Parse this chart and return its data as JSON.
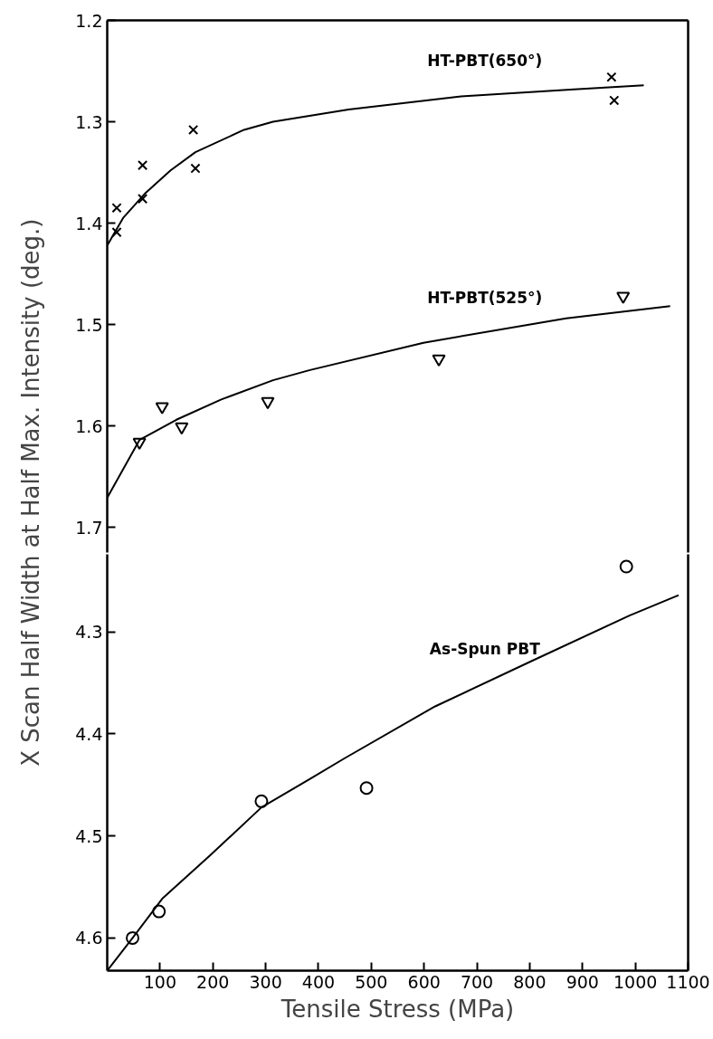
{
  "chart_data": [
    {
      "type": "scatter",
      "ylabel": "X Scan Half Width at Half Max. Intensity  (deg.)",
      "xlim": [
        0,
        1100
      ],
      "ylim": [
        1.725,
        1.2
      ],
      "yticks": [
        1.2,
        1.3,
        1.4,
        1.5,
        1.6,
        1.7
      ],
      "tick_labels": "y",
      "grid": false,
      "series": [
        {
          "marker": "cross",
          "color": "#000000",
          "x": [
            18,
            18,
            67,
            67,
            163,
            167,
            955,
            960
          ],
          "values": [
            1.385,
            1.409,
            1.343,
            1.376,
            1.308,
            1.346,
            1.256,
            1.279
          ]
        },
        {
          "type": "line",
          "name": "HT-PBT(650°)",
          "line_style": "solid",
          "color": "#000000",
          "x": [
            0,
            30,
            73,
            120,
            167,
            259,
            314,
            457,
            670,
            884,
            1016
          ],
          "values": [
            1.422,
            1.395,
            1.37,
            1.348,
            1.33,
            1.308,
            1.3,
            1.288,
            1.275,
            1.268,
            1.264
          ]
        },
        {
          "marker": "triangle",
          "color": "#000000",
          "x": [
            61,
            104,
            141,
            304,
            628,
            977
          ],
          "values": [
            1.616,
            1.581,
            1.601,
            1.576,
            1.534,
            1.472
          ]
        },
        {
          "type": "line",
          "name": "HT-PBT(525°)",
          "line_style": "solid",
          "color": "#000000",
          "x": [
            0,
            61,
            131,
            216,
            314,
            384,
            599,
            869,
            1066
          ],
          "values": [
            1.671,
            1.614,
            1.594,
            1.574,
            1.555,
            1.545,
            1.518,
            1.494,
            1.482
          ]
        }
      ]
    },
    {
      "type": "scatter",
      "xlabel": "Tensile Stress (MPa)",
      "xlim": [
        0,
        1100
      ],
      "ylim": [
        4.632,
        4.224
      ],
      "xticks": [
        100,
        200,
        300,
        400,
        500,
        600,
        700,
        800,
        900,
        1000,
        1100
      ],
      "yticks": [
        4.3,
        4.4,
        4.5,
        4.6
      ],
      "grid": false,
      "series": [
        {
          "marker": "circle",
          "color": "#000000",
          "x": [
            48,
            98,
            292,
            491,
            983
          ],
          "values": [
            4.6,
            4.574,
            4.466,
            4.453,
            4.236
          ]
        },
        {
          "type": "line",
          "name": "As-Spun PBT",
          "line_style": "solid",
          "color": "#000000",
          "x": [
            0,
            48,
            105,
            195,
            292,
            384,
            449,
            621,
            806,
            989,
            1082
          ],
          "values": [
            4.632,
            4.6,
            4.561,
            4.519,
            4.472,
            4.444,
            4.424,
            4.373,
            4.328,
            4.284,
            4.264
          ]
        }
      ]
    }
  ]
}
